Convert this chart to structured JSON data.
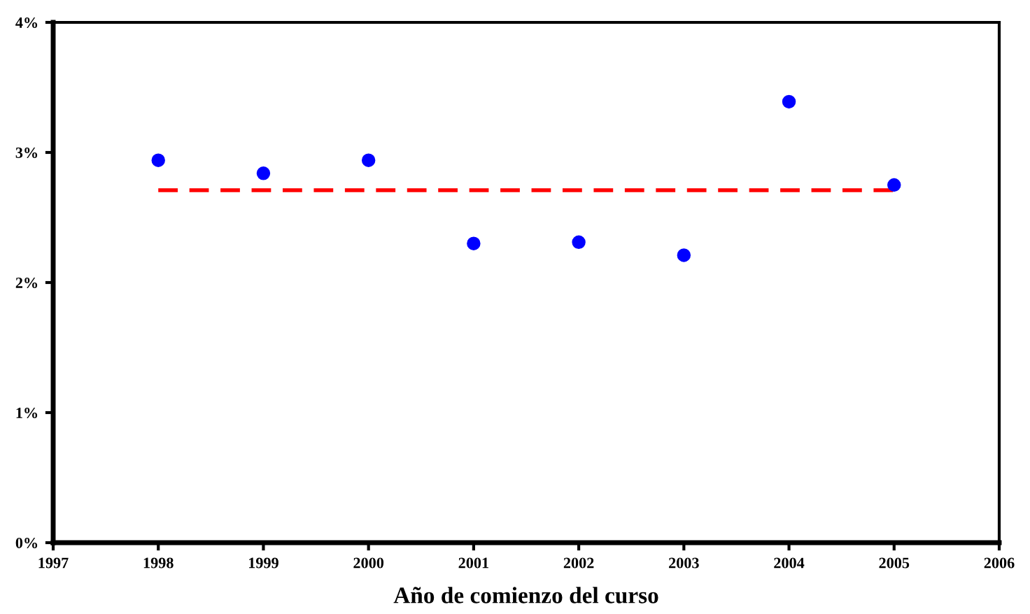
{
  "chart_data": {
    "type": "scatter",
    "xlabel": "Año de comienzo del curso",
    "xlim": [
      1997,
      2006
    ],
    "xticks": [
      1997,
      1998,
      1999,
      2000,
      2001,
      2002,
      2003,
      2004,
      2005,
      2006
    ],
    "ylim": [
      0,
      4
    ],
    "yticks": [
      {
        "value": 0,
        "label": "0%"
      },
      {
        "value": 1,
        "label": "1%"
      },
      {
        "value": 2,
        "label": "2%"
      },
      {
        "value": 3,
        "label": "3%"
      },
      {
        "value": 4,
        "label": "4%"
      }
    ],
    "grid": false,
    "legend": false,
    "series": [
      {
        "color": "#0000ff",
        "marker": "circle",
        "x": [
          1998,
          1999,
          2000,
          2001,
          2002,
          2003,
          2004,
          2005
        ],
        "values": [
          2.94,
          2.84,
          2.94,
          2.3,
          2.31,
          2.21,
          3.39,
          2.75
        ]
      },
      {
        "type": "line",
        "color": "#ff0000",
        "line_style": "dashed",
        "marker": "none",
        "x": [
          1998,
          2005
        ],
        "values": [
          2.71,
          2.71
        ]
      }
    ]
  }
}
